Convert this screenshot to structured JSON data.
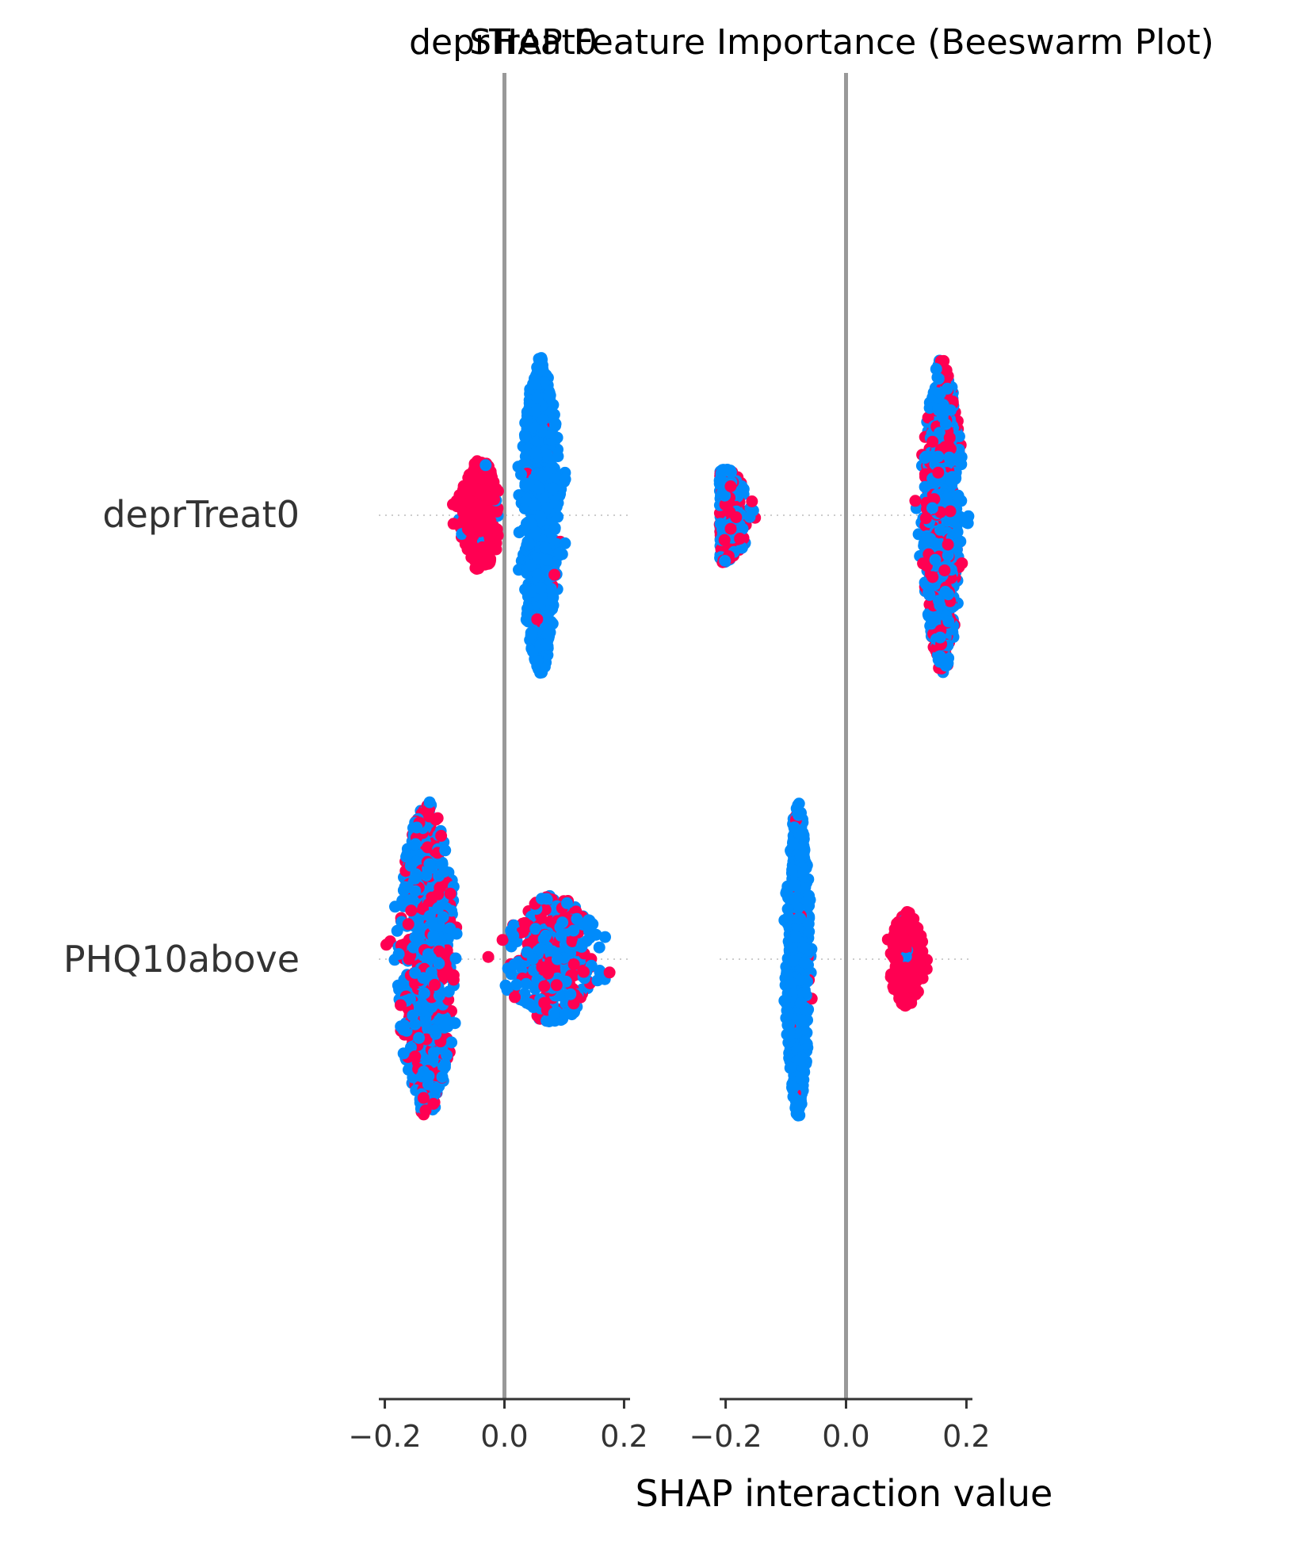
{
  "chart_data": {
    "type": "scatter",
    "subtype": "beeswarm",
    "overlapping_titles": [
      "deprTreat0",
      "SHAP Feature Importance (Beeswarm Plot)"
    ],
    "xlabel": "SHAP interaction value",
    "xlim": [
      -0.21,
      0.21
    ],
    "ticks": [
      -0.2,
      0.0,
      0.2
    ],
    "tick_labels": [
      "−0.2",
      "0.0",
      "0.2"
    ],
    "features": [
      "deprTreat0",
      "PHQ10above"
    ],
    "colors": {
      "high": "#ff0052",
      "low": "#008bfb",
      "zero_line": "#999999",
      "axis": "#333333"
    },
    "panels": [
      {
        "interaction_with": "deprTreat0",
        "rows": [
          {
            "feature": "deprTreat0",
            "clusters": [
              {
                "center": -0.04,
                "spread": 0.022,
                "min": -0.14,
                "max": -0.01,
                "height": 0.35,
                "color_mix": "high"
              },
              {
                "center": 0.06,
                "spread": 0.02,
                "min": 0.02,
                "max": 0.15,
                "height": 1.0,
                "color_mix": "low"
              }
            ]
          },
          {
            "feature": "PHQ10above",
            "clusters": [
              {
                "center": -0.13,
                "spread": 0.03,
                "min": -0.21,
                "max": -0.08,
                "height": 1.0,
                "color_mix": "mixed"
              },
              {
                "center": 0.08,
                "spread": 0.05,
                "min": -0.05,
                "max": 0.21,
                "height": 0.4,
                "color_mix": "mixed"
              }
            ]
          }
        ]
      },
      {
        "interaction_with": "PHQ10above",
        "rows": [
          {
            "feature": "deprTreat0",
            "clusters": [
              {
                "center": -0.2,
                "spread": 0.025,
                "min": -0.21,
                "max": -0.09,
                "height": 0.3,
                "color_mix": "mixed"
              },
              {
                "center": 0.16,
                "spread": 0.02,
                "min": 0.09,
                "max": 0.21,
                "height": 1.0,
                "color_mix": "mixed"
              }
            ]
          },
          {
            "feature": "PHQ10above",
            "clusters": [
              {
                "center": -0.08,
                "spread": 0.012,
                "min": -0.15,
                "max": -0.04,
                "height": 1.0,
                "color_mix": "low"
              },
              {
                "center": 0.1,
                "spread": 0.018,
                "min": 0.03,
                "max": 0.16,
                "height": 0.3,
                "color_mix": "high"
              }
            ]
          }
        ]
      }
    ]
  }
}
